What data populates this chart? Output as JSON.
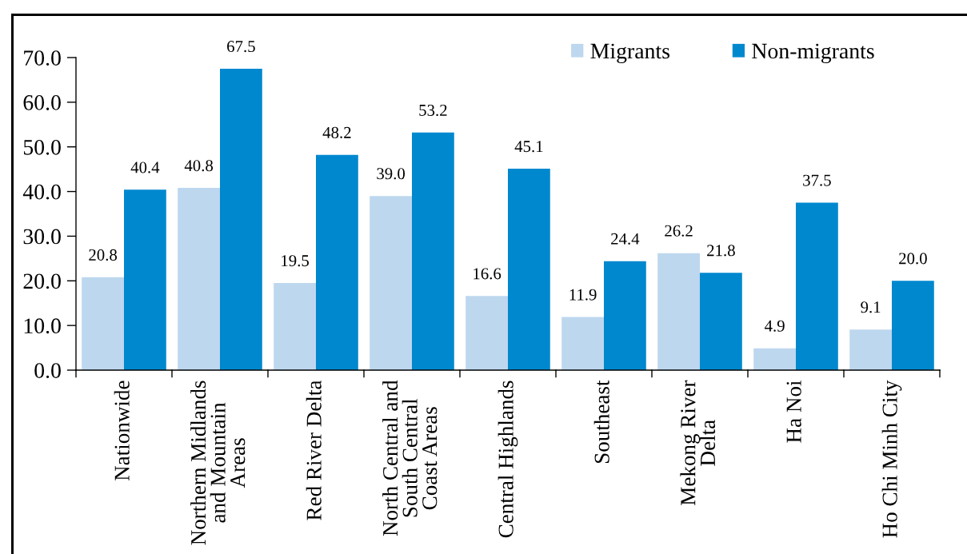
{
  "chart_data": {
    "type": "bar",
    "categories": [
      "Nationwide",
      "Northern Midlands\nand Mountain\nAreas",
      "Red River Delta",
      "North Central and\nSouth Central\nCoast Areas",
      "Central Highlands",
      "Southeast",
      "Mekong River\nDelta",
      "Ha Noi",
      "Ho Chi Minh City"
    ],
    "series": [
      {
        "name": "Migrants",
        "color": "#bdd7ee",
        "values": [
          20.8,
          40.8,
          19.5,
          39.0,
          16.6,
          11.9,
          26.2,
          4.9,
          9.1
        ],
        "value_labels": [
          "20.8",
          "40.8",
          "19.5",
          "39.0",
          "16.6",
          "11.9",
          "26.2",
          "4.9",
          "9.1"
        ]
      },
      {
        "name": "Non-migrants",
        "color": "#0088cf",
        "values": [
          40.4,
          67.5,
          48.2,
          53.2,
          45.1,
          24.4,
          21.8,
          37.5,
          20.0
        ],
        "value_labels": [
          "40.4",
          "67.5",
          "48.2",
          "53.2",
          "45.1",
          "24.4",
          "21.8",
          "37.5",
          "20.0"
        ]
      }
    ],
    "ylim": [
      0,
      70
    ],
    "yticks": [
      {
        "value": 0,
        "label": "0.0"
      },
      {
        "value": 10,
        "label": "10.0"
      },
      {
        "value": 20,
        "label": "20.0"
      },
      {
        "value": 30,
        "label": "30.0"
      },
      {
        "value": 40,
        "label": "40.0"
      },
      {
        "value": 50,
        "label": "50.0"
      },
      {
        "value": 60,
        "label": "60.0"
      },
      {
        "value": 70,
        "label": "70.0"
      }
    ],
    "grid": false,
    "legend": "top right"
  }
}
